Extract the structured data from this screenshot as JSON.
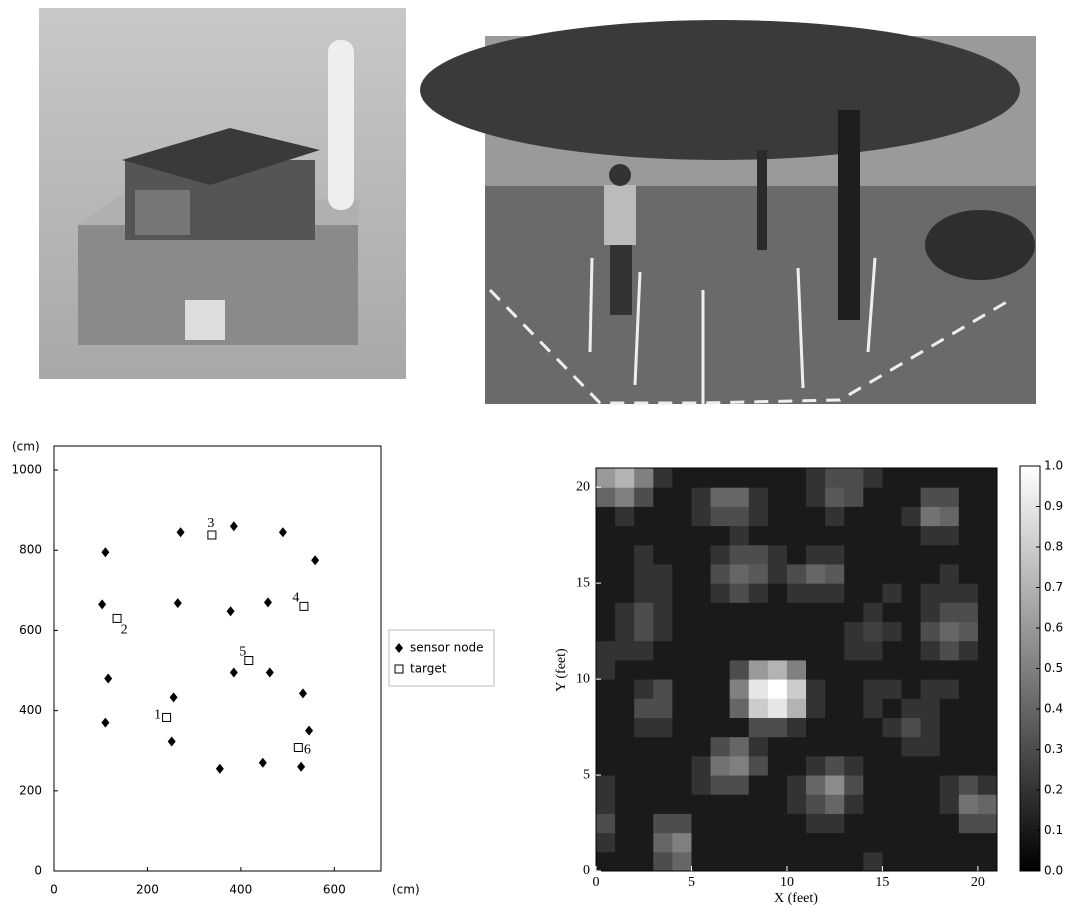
{
  "chart_data": [
    {
      "type": "scatter",
      "x_label": "(cm)",
      "y_label": "(cm)",
      "xlim": [
        0,
        700
      ],
      "ylim": [
        0,
        1060
      ],
      "xticks": [
        0,
        200,
        400,
        600
      ],
      "yticks": [
        0,
        200,
        400,
        600,
        800,
        1000
      ],
      "legend": "right",
      "series": [
        {
          "name": "sensor node",
          "marker": "diamond",
          "color": "#000000",
          "x": [
            110,
            271,
            385,
            490,
            559,
            103,
            265,
            378,
            458,
            116,
            110,
            256,
            385,
            462,
            533,
            546,
            252,
            355,
            447,
            529
          ],
          "y": [
            795,
            845,
            860,
            845,
            775,
            665,
            668,
            648,
            670,
            480,
            370,
            433,
            495,
            495,
            443,
            350,
            323,
            255,
            270,
            260
          ]
        },
        {
          "name": "target",
          "marker": "square",
          "color": "#000000",
          "x": [
            241,
            135,
            338,
            535,
            417,
            523
          ],
          "y": [
            383,
            630,
            838,
            660,
            525,
            308
          ],
          "labels": [
            "1",
            "2",
            "3",
            "4",
            "5",
            "6"
          ]
        }
      ]
    },
    {
      "type": "heatmap",
      "x_label": "X (feet)",
      "y_label": "Y (feet)",
      "xlim": [
        0,
        21
      ],
      "ylim": [
        0,
        21
      ],
      "xticks": [
        0,
        5,
        10,
        15,
        20
      ],
      "yticks": [
        0,
        5,
        10,
        15,
        20
      ],
      "colormap": "gray",
      "clim": [
        0,
        1
      ],
      "cticks": [
        {
          "value": 0,
          "label": "0.0"
        },
        0.1,
        0.2,
        0.3,
        0.4,
        0.5,
        0.6,
        0.7,
        0.8,
        0.9,
        {
          "value": 1,
          "label": "1.0"
        }
      ],
      "z": [
        [
          0.1,
          0.1,
          0.1,
          0.3,
          0.4,
          0.1,
          0.1,
          0.1,
          0.1,
          0.1,
          0.1,
          0.1,
          0.1,
          0.1,
          0.2,
          0.1,
          0.1,
          0.1,
          0.1,
          0.1,
          0.1
        ],
        [
          0.2,
          0.1,
          0.1,
          0.4,
          0.5,
          0.1,
          0.1,
          0.1,
          0.1,
          0.1,
          0.1,
          0.1,
          0.1,
          0.1,
          0.1,
          0.1,
          0.1,
          0.1,
          0.1,
          0.1,
          0.1
        ],
        [
          0.3,
          0.1,
          0.1,
          0.3,
          0.3,
          0.1,
          0.1,
          0.1,
          0.1,
          0.1,
          0.1,
          0.2,
          0.2,
          0.1,
          0.1,
          0.1,
          0.1,
          0.1,
          0.1,
          0.3,
          0.3
        ],
        [
          0.2,
          0.1,
          0.1,
          0.1,
          0.1,
          0.1,
          0.1,
          0.1,
          0.1,
          0.1,
          0.2,
          0.3,
          0.4,
          0.2,
          0.1,
          0.1,
          0.1,
          0.1,
          0.2,
          0.45,
          0.4
        ],
        [
          0.2,
          0.1,
          0.1,
          0.1,
          0.1,
          0.2,
          0.3,
          0.3,
          0.1,
          0.1,
          0.2,
          0.4,
          0.55,
          0.3,
          0.1,
          0.1,
          0.1,
          0.1,
          0.2,
          0.3,
          0.2
        ],
        [
          0.1,
          0.1,
          0.1,
          0.1,
          0.1,
          0.2,
          0.45,
          0.5,
          0.3,
          0.1,
          0.1,
          0.2,
          0.3,
          0.2,
          0.1,
          0.1,
          0.1,
          0.1,
          0.1,
          0.1,
          0.1
        ],
        [
          0.1,
          0.1,
          0.1,
          0.1,
          0.1,
          0.1,
          0.3,
          0.4,
          0.2,
          0.1,
          0.1,
          0.1,
          0.1,
          0.1,
          0.1,
          0.1,
          0.2,
          0.2,
          0.1,
          0.1,
          0.1
        ],
        [
          0.1,
          0.1,
          0.2,
          0.2,
          0.1,
          0.1,
          0.1,
          0.1,
          0.3,
          0.3,
          0.2,
          0.1,
          0.1,
          0.1,
          0.1,
          0.2,
          0.3,
          0.2,
          0.1,
          0.1,
          0.1
        ],
        [
          0.1,
          0.1,
          0.3,
          0.3,
          0.1,
          0.1,
          0.1,
          0.4,
          0.8,
          0.9,
          0.7,
          0.2,
          0.1,
          0.1,
          0.2,
          0.1,
          0.2,
          0.2,
          0.1,
          0.1,
          0.1
        ],
        [
          0.1,
          0.1,
          0.2,
          0.3,
          0.1,
          0.1,
          0.1,
          0.5,
          0.9,
          1.0,
          0.8,
          0.2,
          0.1,
          0.1,
          0.2,
          0.2,
          0.1,
          0.2,
          0.2,
          0.1,
          0.1
        ],
        [
          0.2,
          0.1,
          0.1,
          0.1,
          0.1,
          0.1,
          0.1,
          0.3,
          0.6,
          0.7,
          0.5,
          0.1,
          0.1,
          0.1,
          0.1,
          0.1,
          0.1,
          0.1,
          0.1,
          0.1,
          0.1
        ],
        [
          0.2,
          0.2,
          0.2,
          0.1,
          0.1,
          0.1,
          0.1,
          0.1,
          0.1,
          0.1,
          0.1,
          0.1,
          0.1,
          0.2,
          0.2,
          0.1,
          0.1,
          0.2,
          0.3,
          0.2,
          0.1
        ],
        [
          0.1,
          0.2,
          0.3,
          0.2,
          0.1,
          0.1,
          0.1,
          0.1,
          0.1,
          0.1,
          0.1,
          0.1,
          0.1,
          0.2,
          0.25,
          0.2,
          0.1,
          0.3,
          0.4,
          0.35,
          0.1
        ],
        [
          0.1,
          0.2,
          0.3,
          0.2,
          0.1,
          0.1,
          0.1,
          0.1,
          0.1,
          0.1,
          0.1,
          0.1,
          0.1,
          0.1,
          0.2,
          0.1,
          0.1,
          0.2,
          0.3,
          0.3,
          0.1
        ],
        [
          0.1,
          0.1,
          0.2,
          0.2,
          0.1,
          0.1,
          0.2,
          0.3,
          0.2,
          0.1,
          0.2,
          0.2,
          0.2,
          0.1,
          0.1,
          0.2,
          0.1,
          0.2,
          0.2,
          0.2,
          0.1
        ],
        [
          0.1,
          0.1,
          0.2,
          0.2,
          0.1,
          0.1,
          0.3,
          0.4,
          0.35,
          0.2,
          0.3,
          0.4,
          0.35,
          0.1,
          0.1,
          0.1,
          0.1,
          0.1,
          0.2,
          0.1,
          0.1
        ],
        [
          0.1,
          0.1,
          0.2,
          0.1,
          0.1,
          0.1,
          0.2,
          0.3,
          0.3,
          0.2,
          0.1,
          0.2,
          0.2,
          0.1,
          0.1,
          0.1,
          0.1,
          0.1,
          0.1,
          0.1,
          0.1
        ],
        [
          0.1,
          0.1,
          0.1,
          0.1,
          0.1,
          0.1,
          0.1,
          0.2,
          0.1,
          0.1,
          0.1,
          0.1,
          0.1,
          0.1,
          0.1,
          0.1,
          0.1,
          0.2,
          0.2,
          0.1,
          0.1
        ],
        [
          0.1,
          0.2,
          0.1,
          0.1,
          0.1,
          0.2,
          0.3,
          0.3,
          0.2,
          0.1,
          0.1,
          0.1,
          0.2,
          0.1,
          0.1,
          0.1,
          0.2,
          0.45,
          0.4,
          0.1,
          0.1
        ],
        [
          0.4,
          0.5,
          0.3,
          0.1,
          0.1,
          0.2,
          0.4,
          0.4,
          0.2,
          0.1,
          0.1,
          0.2,
          0.35,
          0.3,
          0.1,
          0.1,
          0.1,
          0.3,
          0.3,
          0.1,
          0.1
        ],
        [
          0.6,
          0.7,
          0.5,
          0.2,
          0.1,
          0.1,
          0.1,
          0.1,
          0.1,
          0.1,
          0.1,
          0.2,
          0.3,
          0.3,
          0.2,
          0.1,
          0.1,
          0.1,
          0.1,
          0.1,
          0.1
        ]
      ]
    }
  ]
}
